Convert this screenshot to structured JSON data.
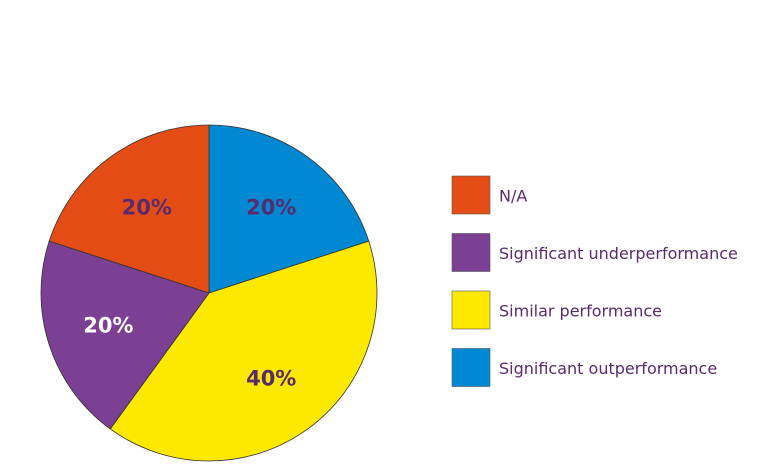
{
  "chart_data": {
    "type": "pie",
    "categories": [
      "N/A",
      "Significant underperformance",
      "Similar performance",
      "Significant outperformance"
    ],
    "values": [
      20,
      20,
      40,
      20
    ],
    "labels": [
      "20%",
      "20%",
      "40%",
      "20%"
    ],
    "colors": [
      "#e34d15",
      "#7b3f93",
      "#fde800",
      "#0089d2"
    ],
    "label_colors": [
      "#5a2a6e",
      "#ffffff",
      "#5a2a6e",
      "#5a2a6e"
    ],
    "legend_text_color": "#5a2a6e",
    "legend_position": "right"
  }
}
